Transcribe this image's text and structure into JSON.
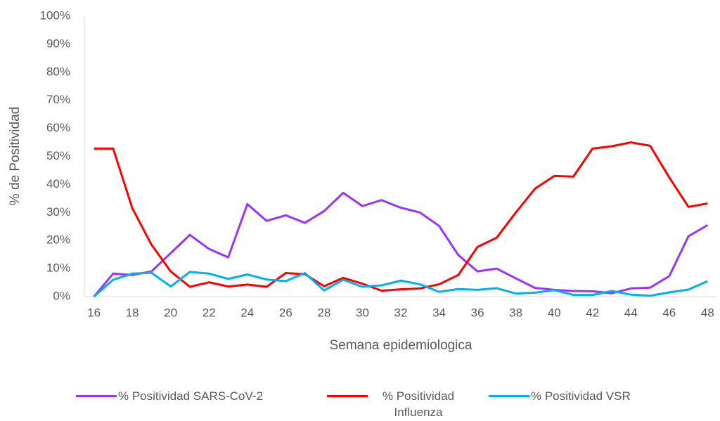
{
  "chart_data": {
    "type": "line",
    "x_label": "Semana epidemiologica",
    "y_label": "% de Positividad",
    "categories": [
      "16",
      null,
      "18",
      null,
      "20",
      null,
      "22",
      null,
      "24",
      null,
      "26",
      null,
      "28",
      null,
      "30",
      null,
      "32",
      null,
      "34",
      null,
      "36",
      null,
      "38",
      null,
      "40",
      null,
      "42",
      null,
      "44",
      null,
      "46",
      null,
      "48"
    ],
    "ylim": [
      0,
      100
    ],
    "yticks": [
      {
        "value": 0,
        "label": "0%"
      },
      {
        "value": 10,
        "label": "10%"
      },
      {
        "value": 20,
        "label": "20%"
      },
      {
        "value": 30,
        "label": "30%"
      },
      {
        "value": 40,
        "label": "40%"
      },
      {
        "value": 50,
        "label": "50%"
      },
      {
        "value": 60,
        "label": "60%"
      },
      {
        "value": 70,
        "label": "70%"
      },
      {
        "value": 80,
        "label": "80%"
      },
      {
        "value": 90,
        "label": "90%"
      },
      {
        "value": 100,
        "label": "100%"
      }
    ],
    "grid": false,
    "series": [
      {
        "name": "% Positividad SARS-CoV-2",
        "color": "#9933ff",
        "values": [
          0,
          8.2,
          7.7,
          9,
          15.5,
          22,
          17,
          14,
          33,
          27,
          29,
          26.3,
          30.5,
          37,
          32.3,
          34.4,
          31.7,
          30,
          25.2,
          14.8,
          9,
          10,
          6.5,
          3.1,
          2.4,
          2,
          1.9,
          1.2,
          2.9,
          3.2,
          7.3,
          21.5,
          25.5
        ]
      },
      {
        "name": "% Positividad Influenza",
        "color": "#ff0000",
        "values": [
          52.8,
          52.8,
          31.5,
          18.5,
          9,
          3.5,
          5.1,
          3.6,
          4.3,
          3.5,
          8.4,
          8,
          3.7,
          6.7,
          4.6,
          2.1,
          2.6,
          2.9,
          4.4,
          7.7,
          17.7,
          21,
          30,
          38.5,
          43,
          42.8,
          52.8,
          53.6,
          55,
          53.8,
          42.5,
          32,
          33.2
        ]
      },
      {
        "name": "% Positividad VSR",
        "color": "#00b0f0",
        "values": [
          0,
          6,
          8.2,
          8.5,
          3.6,
          8.8,
          8.2,
          6.3,
          7.9,
          6.1,
          5.5,
          8.4,
          2.2,
          6,
          3.5,
          4,
          5.7,
          4.4,
          1.7,
          2.7,
          2.4,
          3,
          1.1,
          1.4,
          2.3,
          0.6,
          0.6,
          2,
          0.7,
          0.3,
          1.5,
          2.5,
          5.5
        ]
      }
    ]
  }
}
